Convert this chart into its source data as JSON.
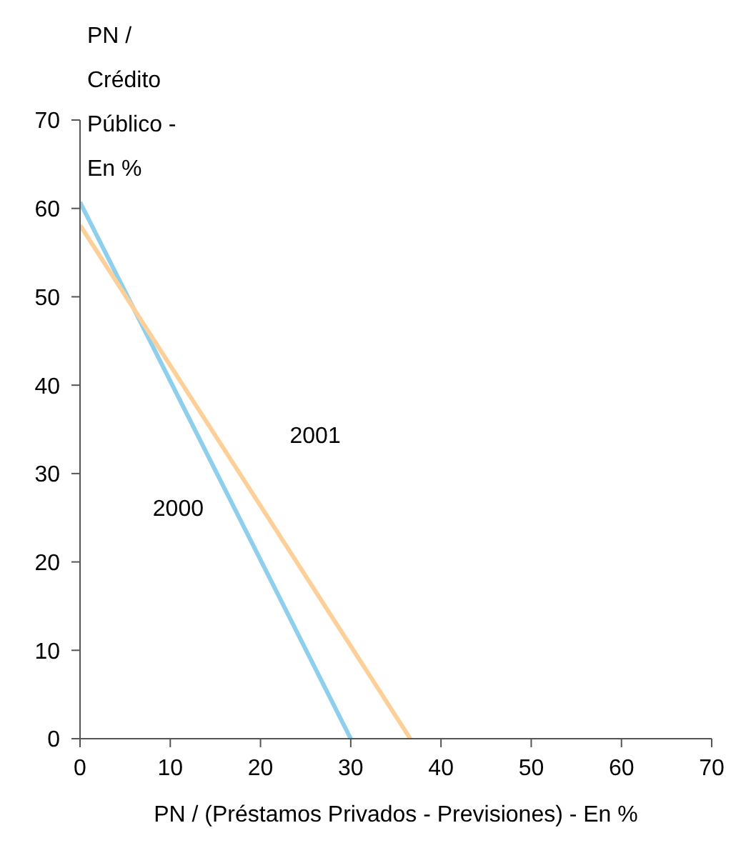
{
  "chart_data": {
    "type": "line",
    "xlabel": "PN / (Préstamos Privados - Previsiones) - En %",
    "ylabel": "PN / Crédito Público - En %",
    "series": [
      {
        "name": "2000",
        "color": "#8ecfee",
        "x": [
          0,
          30
        ],
        "values": [
          60.7,
          0
        ]
      },
      {
        "name": "2001",
        "color": "#fdd09a",
        "x": [
          0,
          36.6
        ],
        "values": [
          58.1,
          0
        ]
      }
    ],
    "xlim": [
      0,
      70
    ],
    "xticks": [
      0,
      10,
      20,
      30,
      40,
      50,
      60,
      70
    ],
    "ylim": [
      0,
      70
    ],
    "yticks": [
      0,
      10,
      20,
      30,
      40,
      50,
      60,
      70
    ],
    "grid": false,
    "legend": false,
    "marker": "none",
    "line_style": "solid"
  }
}
